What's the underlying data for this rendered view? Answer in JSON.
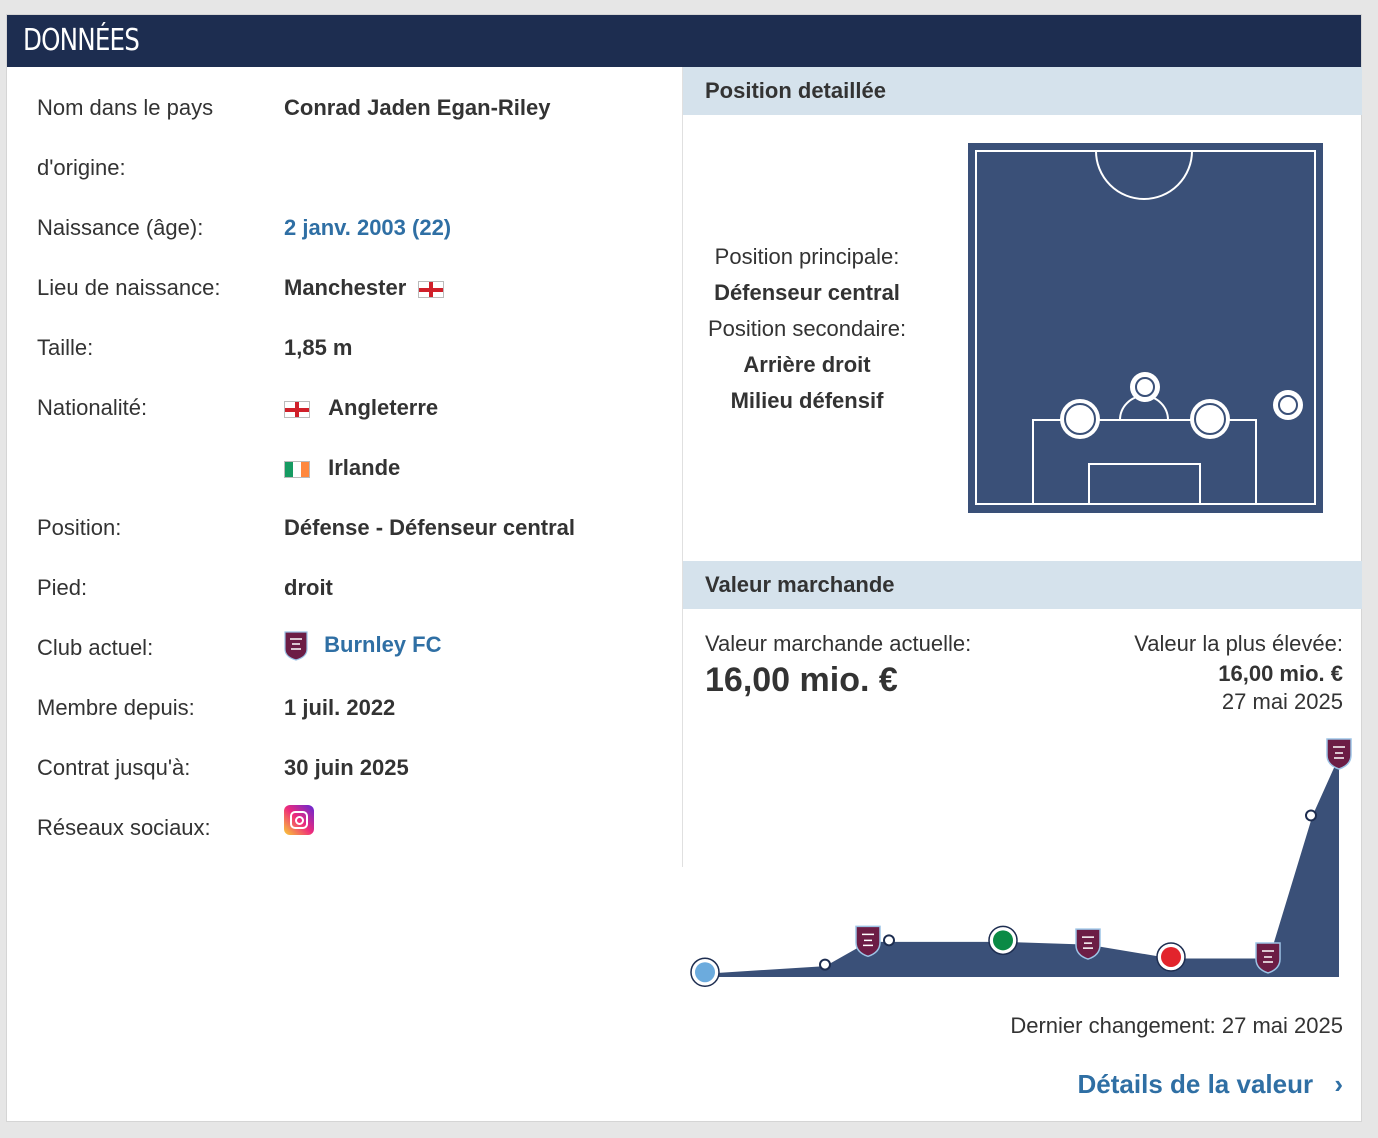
{
  "header": {
    "title": "DONNÉES"
  },
  "facts": [
    {
      "label": "Nom dans le pays",
      "label2": "d'origine:",
      "value": "Conrad Jaden Egan-Riley"
    },
    {
      "label": "Naissance (âge):",
      "value": "2 janv. 2003 (22)"
    },
    {
      "label": "Lieu de naissance:",
      "value": "Manchester"
    },
    {
      "label": "Taille:",
      "value": "1,85 m"
    },
    {
      "label": "Nationalité:",
      "value": "Angleterre",
      "value2": "Irlande"
    },
    {
      "label": "Position:",
      "value": "Défense - Défenseur central"
    },
    {
      "label": "Pied:",
      "value": "droit"
    },
    {
      "label": "Club actuel:",
      "value": "Burnley FC"
    },
    {
      "label": "Membre depuis:",
      "value": "1 juil. 2022"
    },
    {
      "label": "Contrat jusqu'à:",
      "value": "30 juin 2025"
    },
    {
      "label": "Réseaux sociaux:",
      "icon": "instagram-icon"
    }
  ],
  "position_section": {
    "title": "Position detaillée",
    "main_label": "Position principale:",
    "main_value": "Défenseur central",
    "secondary_label": "Position secondaire:",
    "secondary_values": [
      "Arrière droit",
      "Milieu défensif"
    ]
  },
  "market_value": {
    "title": "Valeur marchande",
    "current_label": "Valeur marchande actuelle:",
    "current_value": "16,00 mio. €",
    "highest_label": "Valeur la plus élevée:",
    "highest_value": "16,00 mio. €",
    "highest_date": "27 mai 2025",
    "last_change": "Dernier changement: 27 mai 2025",
    "details_link": "Détails de la valeur",
    "chevron": "›"
  },
  "colors": {
    "header_bg": "#1d2d50",
    "section_bg": "#d5e2ec",
    "link": "#2f6fa4",
    "pitch": "#3a5078",
    "burnley": "#6c1d45"
  },
  "chart_data": {
    "type": "area",
    "series": [
      {
        "values": [
          0.2,
          0.75,
          2.5,
          2.5,
          2.5,
          2.3,
          1.3,
          1.3,
          11.5,
          16.0
        ]
      }
    ],
    "clubs": [
      "Man City",
      "",
      "Burnley",
      "",
      "Hibernian",
      "Burnley",
      "PSV",
      "Burnley",
      "",
      "Burnley"
    ],
    "ylim": [
      0,
      16
    ]
  }
}
